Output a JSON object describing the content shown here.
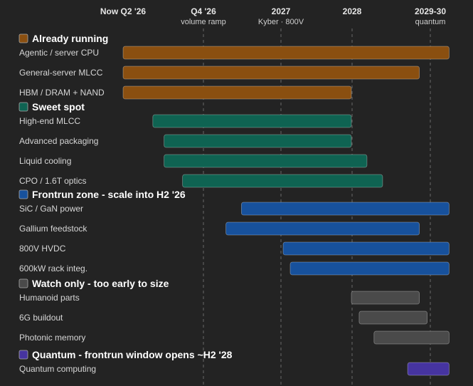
{
  "chart_data": {
    "type": "gantt",
    "timeline": [
      {
        "label": "Now Q2 '26",
        "sub": ""
      },
      {
        "label": "Q4 '26",
        "sub": "volume ramp"
      },
      {
        "label": "2027",
        "sub": "Kyber · 800V"
      },
      {
        "label": "2028",
        "sub": ""
      },
      {
        "label": "2029-30",
        "sub": "quantum"
      }
    ],
    "groups": [
      {
        "title": "Already running",
        "color": "#8a4f10",
        "items": [
          {
            "label": "Agentic / server CPU",
            "start": 0.0,
            "end": 4.24
          },
          {
            "label": "General-server MLCC",
            "start": 0.0,
            "end": 3.86
          },
          {
            "label": "HBM / DRAM + NAND",
            "start": 0.0,
            "end": 2.99
          }
        ]
      },
      {
        "title": "Sweet spot",
        "color": "#0f6352",
        "items": [
          {
            "label": "High-end MLCC",
            "start": 0.37,
            "end": 2.99
          },
          {
            "label": "Advanced packaging",
            "start": 0.51,
            "end": 2.99
          },
          {
            "label": "Liquid cooling",
            "start": 0.51,
            "end": 3.19
          },
          {
            "label": "CPO / 1.6T optics",
            "start": 0.74,
            "end": 3.39
          }
        ]
      },
      {
        "title": "Frontrun zone - scale into H2 '26",
        "color": "#17519c",
        "items": [
          {
            "label": "SiC / GaN power",
            "start": 1.49,
            "end": 4.24
          },
          {
            "label": "Gallium feedstock",
            "start": 1.29,
            "end": 3.86
          },
          {
            "label": "800V HVDC",
            "start": 2.03,
            "end": 4.24
          },
          {
            "label": "600kW rack integ.",
            "start": 2.13,
            "end": 4.24
          }
        ]
      },
      {
        "title": "Watch only - too early to size",
        "color": "#4a4a4a",
        "items": [
          {
            "label": "Humanoid parts",
            "start": 2.99,
            "end": 3.86
          },
          {
            "label": "6G buildout",
            "start": 3.09,
            "end": 3.96
          },
          {
            "label": "Photonic memory",
            "start": 3.28,
            "end": 4.24
          }
        ]
      },
      {
        "title": "Quantum - frontrun window opens ~H2 '28",
        "color": "#4634a0",
        "items": [
          {
            "label": "Quantum computing",
            "start": 3.71,
            "end": 4.24
          }
        ]
      }
    ]
  }
}
